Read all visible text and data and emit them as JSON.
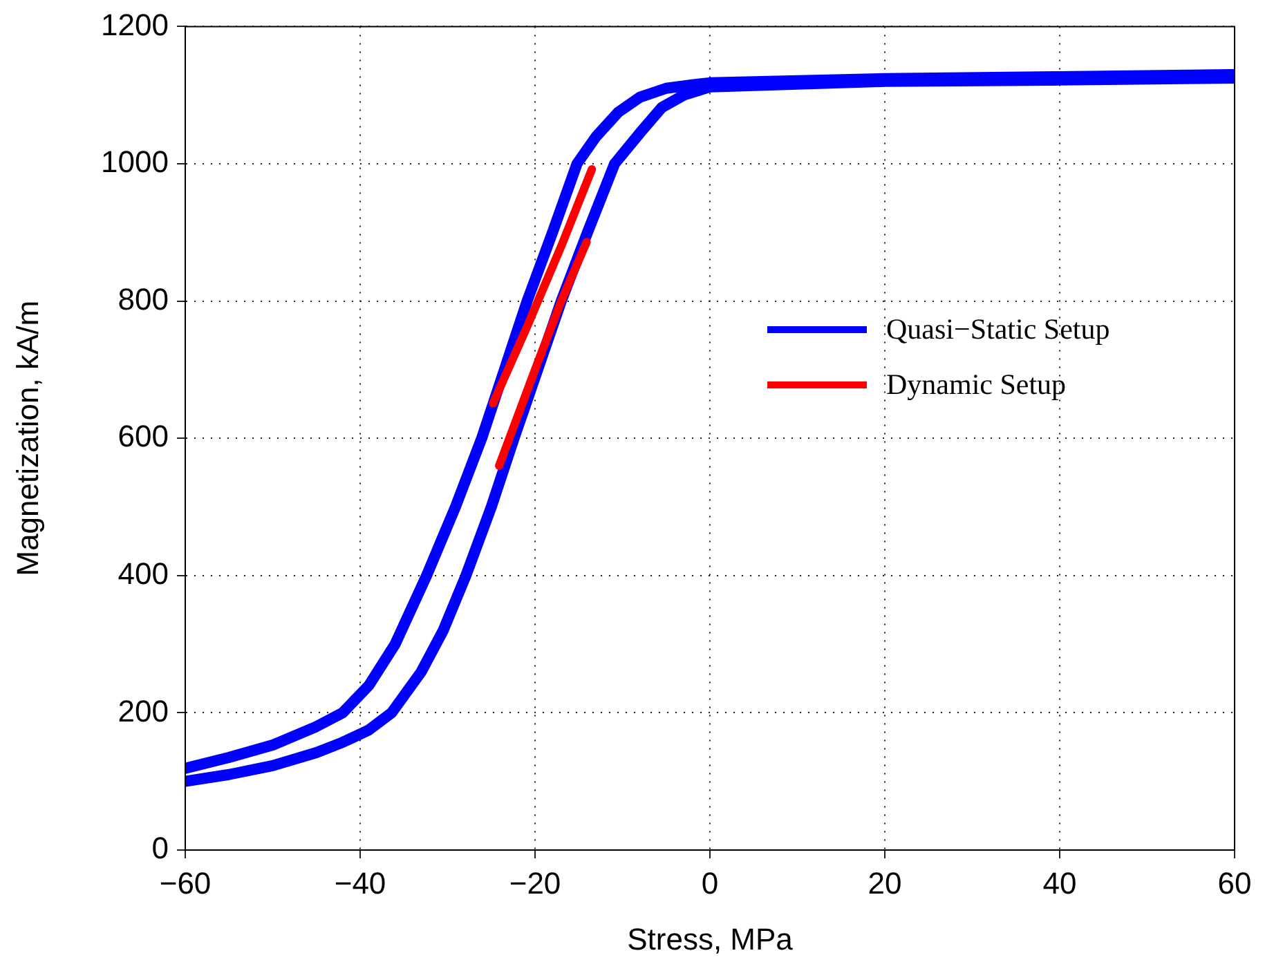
{
  "chart_data": {
    "type": "line",
    "xlabel": "Stress, MPa",
    "ylabel": "Magnetization, kA/m",
    "xlim": [
      -60,
      60
    ],
    "ylim": [
      0,
      1200
    ],
    "xticks": [
      {
        "value": -60,
        "label": "−60"
      },
      {
        "value": -40,
        "label": "−40"
      },
      {
        "value": -20,
        "label": "−20"
      },
      0,
      20,
      40,
      60
    ],
    "yticks": [
      0,
      200,
      400,
      600,
      800,
      1000,
      1200
    ],
    "grid": true,
    "legend": "right",
    "marker": "none",
    "line_style": "solid",
    "series": [
      {
        "name": "Quasi−Static Setup",
        "color": "#0000ff",
        "x": [
          -60,
          -55,
          -50,
          -45,
          -42,
          -39,
          -36,
          -32.4,
          -29.1,
          -26.1,
          -23.5,
          -20.9,
          -18,
          -15.2,
          -13,
          -10.5,
          -8,
          -5,
          -2,
          0,
          20,
          40,
          60,
          60,
          40,
          20,
          0,
          -3,
          -5.5,
          -8,
          -10.9,
          -14,
          -17,
          -19.7,
          -22.4,
          -25,
          -27.9,
          -30.5,
          -33,
          -36.4,
          -39,
          -42,
          -45,
          -50,
          -55,
          -60
        ],
        "values": [
          119,
          135,
          153,
          180,
          200,
          240,
          300,
          400,
          500,
          600,
          700,
          800,
          900,
          1000,
          1040,
          1075,
          1097,
          1110,
          1115,
          1118,
          1124,
          1127,
          1130,
          1125,
          1122,
          1120,
          1112,
          1100,
          1082,
          1045,
          1000,
          900,
          800,
          700,
          600,
          500,
          400,
          320,
          260,
          200,
          175,
          157,
          142,
          123,
          110,
          100
        ]
      },
      {
        "name": "Dynamic Setup",
        "color": "#ff0000",
        "x": [
          -24.8,
          -21,
          -17,
          -13.5
        ],
        "values": [
          651,
          760,
          880,
          992
        ]
      },
      {
        "color": "#ff0000",
        "x": [
          -14.1,
          -17,
          -20,
          -24.1
        ],
        "values": [
          886,
          800,
          700,
          560
        ]
      }
    ]
  }
}
